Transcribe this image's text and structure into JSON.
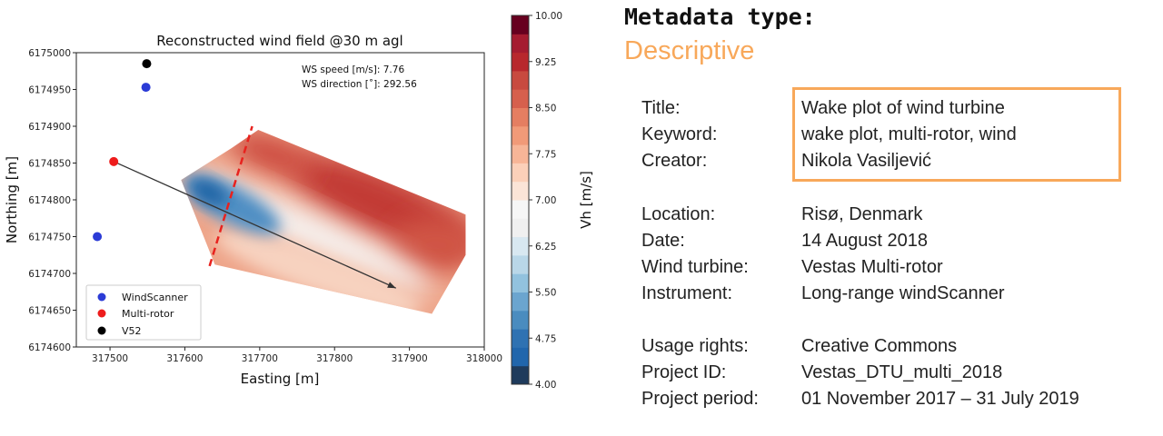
{
  "chart_data": {
    "type": "scatter",
    "title": "Reconstructed wind field @30 m agl",
    "xlabel": "Easting [m]",
    "ylabel": "Northing [m]",
    "xlim": [
      317455,
      318000
    ],
    "ylim": [
      6174600,
      6175000
    ],
    "xticks": [
      "317500",
      "317600",
      "317700",
      "317800",
      "317900",
      "318000"
    ],
    "yticks": [
      "6174600",
      "6174650",
      "6174700",
      "6174750",
      "6174800",
      "6174850",
      "6174900",
      "6174950",
      "6175000"
    ],
    "annotations": [
      "WS speed [m/s]: 7.76",
      "WS direction [˚]: 292.56"
    ],
    "legend_position": "lower-left",
    "series": [
      {
        "name": "WindScanner",
        "color": "#2b3bd6",
        "points": [
          [
            317548,
            6174953
          ],
          [
            317483,
            6174750
          ]
        ]
      },
      {
        "name": "Multi-rotor",
        "color": "#ee1c1c",
        "points": [
          [
            317505,
            6174852
          ]
        ]
      },
      {
        "name": "V52",
        "color": "#000000",
        "points": [
          [
            317549,
            6174985
          ]
        ]
      }
    ],
    "arrow": {
      "from": [
        317505,
        6174852
      ],
      "to": [
        317882,
        6174680
      ],
      "color": "#333333"
    },
    "dashed_line": {
      "from": [
        317633,
        6174710
      ],
      "to": [
        317690,
        6174900
      ],
      "color": "#e8221e"
    },
    "contour_field": {
      "variable": "Vh",
      "colormap": "RdBu_r",
      "outline": [
        [
          317595,
          6174827
        ],
        [
          317665,
          6174872
        ],
        [
          317698,
          6174895
        ],
        [
          317975,
          6174780
        ],
        [
          317975,
          6174725
        ],
        [
          317930,
          6174645
        ],
        [
          317640,
          6174712
        ]
      ]
    },
    "colorbar": {
      "label": "Vh [m/s]",
      "range": [
        4.0,
        10.0
      ],
      "ticks": [
        "4.00",
        "4.75",
        "5.50",
        "6.25",
        "7.00",
        "7.75",
        "8.50",
        "9.25",
        "10.00"
      ]
    }
  },
  "metadata": {
    "heading": "Metadata type:",
    "type": "Descriptive",
    "highlight_color": "#f8a85a",
    "rows": [
      {
        "label": "Title:",
        "value": "Wake plot of wind turbine"
      },
      {
        "label": "Keyword:",
        "value": "wake plot, multi-rotor, wind"
      },
      {
        "label": "Creator:",
        "value": "Nikola Vasiljević"
      },
      {
        "label": "Location:",
        "value": "Risø, Denmark"
      },
      {
        "label": "Date:",
        "value": "14 August 2018"
      },
      {
        "label": "Wind turbine:",
        "value": "Vestas Multi-rotor"
      },
      {
        "label": "Instrument:",
        "value": "Long-range windScanner"
      },
      {
        "label": "Usage rights:",
        "value": "Creative Commons"
      },
      {
        "label": "Project ID:",
        "value": "Vestas_DTU_multi_2018"
      },
      {
        "label": "Project period:",
        "value": "01 November 2017 – 31 July 2019"
      }
    ]
  }
}
